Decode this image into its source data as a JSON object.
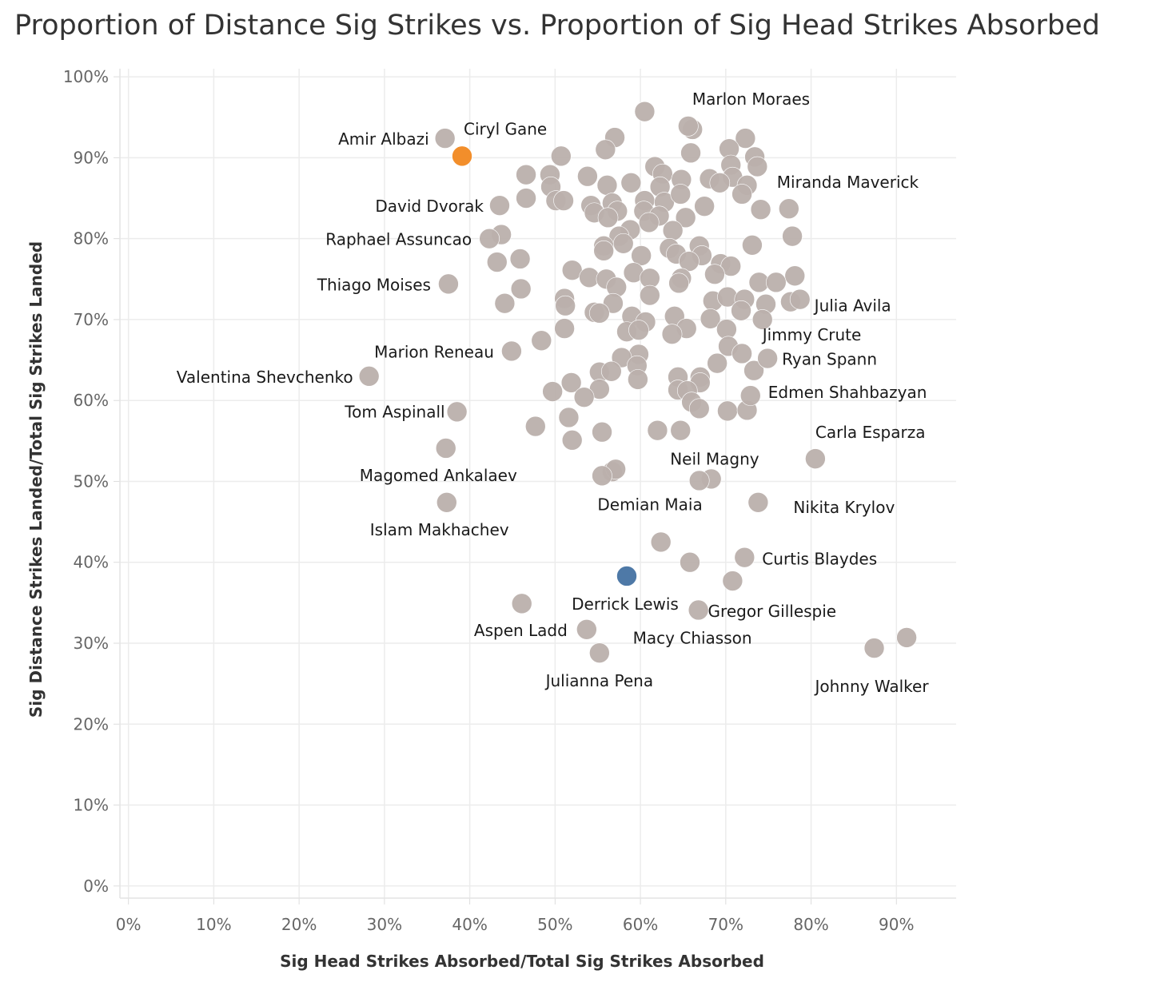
{
  "chart_data": {
    "type": "scatter",
    "title": "Proportion of Distance Sig Strikes vs. Proportion of Sig Head Strikes Absorbed",
    "xlabel": "Sig Head Strikes Absorbed/Total Sig Strikes Absorbed",
    "ylabel": "Sig Distance Strikes Landed/Total Sig Strikes Landed",
    "xlim": [
      -0.01,
      0.97
    ],
    "ylim": [
      -0.015,
      1.01
    ],
    "x_ticks": [
      0,
      0.1,
      0.2,
      0.3,
      0.4,
      0.5,
      0.6,
      0.7,
      0.8,
      0.9
    ],
    "x_tick_labels": [
      "0%",
      "10%",
      "20%",
      "30%",
      "40%",
      "50%",
      "60%",
      "70%",
      "80%",
      "90%"
    ],
    "y_ticks": [
      0,
      0.1,
      0.2,
      0.3,
      0.4,
      0.5,
      0.6,
      0.7,
      0.8,
      0.9,
      1.0
    ],
    "y_tick_labels": [
      "0%",
      "10%",
      "20%",
      "30%",
      "40%",
      "50%",
      "60%",
      "70%",
      "80%",
      "90%",
      "100%"
    ],
    "grid": true,
    "colors": {
      "default": "#bab0ac",
      "highlight_orange": "#f28e2b",
      "highlight_blue": "#4e79a7",
      "grid": "#ececec",
      "label": "#1a1a1a"
    },
    "labeled_points": [
      {
        "name": "Marlon Moraes",
        "x": 0.656,
        "y": 0.939
      },
      {
        "name": "Amir Albazi",
        "x": 0.371,
        "y": 0.924
      },
      {
        "name": "Ciryl Gane",
        "x": 0.391,
        "y": 0.902,
        "color": "#f28e2b"
      },
      {
        "name": "Miranda Maverick",
        "x": 0.774,
        "y": 0.837
      },
      {
        "name": "David Dvorak",
        "x": 0.435,
        "y": 0.841
      },
      {
        "name": "Raphael Assuncao",
        "x": 0.423,
        "y": 0.8
      },
      {
        "name": "Thiago Moises",
        "x": 0.375,
        "y": 0.744
      },
      {
        "name": "Julia Avila",
        "x": 0.787,
        "y": 0.725
      },
      {
        "name": "Jimmy Crute",
        "x": 0.743,
        "y": 0.7
      },
      {
        "name": "Marion Reneau",
        "x": 0.449,
        "y": 0.661
      },
      {
        "name": "Ryan Spann",
        "x": 0.749,
        "y": 0.652
      },
      {
        "name": "Valentina Shevchenko",
        "x": 0.282,
        "y": 0.63
      },
      {
        "name": "Edmen Shahbazyan",
        "x": 0.729,
        "y": 0.606
      },
      {
        "name": "Tom Aspinall",
        "x": 0.385,
        "y": 0.586
      },
      {
        "name": "Carla Esparza",
        "x": 0.805,
        "y": 0.528
      },
      {
        "name": "Neil Magny",
        "x": 0.683,
        "y": 0.503
      },
      {
        "name": "Magomed Ankalaev",
        "x": 0.372,
        "y": 0.541
      },
      {
        "name": "Demian Maia",
        "x": 0.669,
        "y": 0.501
      },
      {
        "name": "Nikita Krylov",
        "x": 0.738,
        "y": 0.474
      },
      {
        "name": "Islam Makhachev",
        "x": 0.373,
        "y": 0.474
      },
      {
        "name": "Curtis Blaydes",
        "x": 0.722,
        "y": 0.406
      },
      {
        "name": "Derrick Lewis",
        "x": 0.584,
        "y": 0.383,
        "color": "#4e79a7"
      },
      {
        "name": "Gregor Gillespie",
        "x": 0.912,
        "y": 0.307
      },
      {
        "name": "Aspen Ladd",
        "x": 0.537,
        "y": 0.317
      },
      {
        "name": "Macy Chiasson",
        "x": 0.668,
        "y": 0.341
      },
      {
        "name": "Julianna Pena",
        "x": 0.552,
        "y": 0.288
      },
      {
        "name": "Johnny Walker",
        "x": 0.874,
        "y": 0.294
      }
    ],
    "other_points": [
      [
        0.605,
        0.957
      ],
      [
        0.661,
        0.935
      ],
      [
        0.57,
        0.925
      ],
      [
        0.723,
        0.924
      ],
      [
        0.559,
        0.91
      ],
      [
        0.704,
        0.911
      ],
      [
        0.659,
        0.906
      ],
      [
        0.507,
        0.902
      ],
      [
        0.734,
        0.901
      ],
      [
        0.706,
        0.891
      ],
      [
        0.737,
        0.889
      ],
      [
        0.617,
        0.889
      ],
      [
        0.626,
        0.88
      ],
      [
        0.466,
        0.879
      ],
      [
        0.494,
        0.879
      ],
      [
        0.538,
        0.877
      ],
      [
        0.648,
        0.873
      ],
      [
        0.681,
        0.874
      ],
      [
        0.708,
        0.876
      ],
      [
        0.693,
        0.869
      ],
      [
        0.561,
        0.866
      ],
      [
        0.589,
        0.869
      ],
      [
        0.623,
        0.864
      ],
      [
        0.495,
        0.864
      ],
      [
        0.725,
        0.866
      ],
      [
        0.466,
        0.85
      ],
      [
        0.501,
        0.847
      ],
      [
        0.51,
        0.847
      ],
      [
        0.542,
        0.841
      ],
      [
        0.567,
        0.844
      ],
      [
        0.605,
        0.847
      ],
      [
        0.628,
        0.845
      ],
      [
        0.647,
        0.855
      ],
      [
        0.719,
        0.855
      ],
      [
        0.546,
        0.832
      ],
      [
        0.573,
        0.834
      ],
      [
        0.604,
        0.834
      ],
      [
        0.622,
        0.828
      ],
      [
        0.653,
        0.826
      ],
      [
        0.675,
        0.84
      ],
      [
        0.741,
        0.836
      ],
      [
        0.562,
        0.826
      ],
      [
        0.588,
        0.811
      ],
      [
        0.61,
        0.82
      ],
      [
        0.638,
        0.81
      ],
      [
        0.575,
        0.803
      ],
      [
        0.437,
        0.805
      ],
      [
        0.778,
        0.803
      ],
      [
        0.557,
        0.791
      ],
      [
        0.58,
        0.794
      ],
      [
        0.601,
        0.779
      ],
      [
        0.634,
        0.788
      ],
      [
        0.642,
        0.781
      ],
      [
        0.669,
        0.791
      ],
      [
        0.731,
        0.792
      ],
      [
        0.557,
        0.785
      ],
      [
        0.672,
        0.779
      ],
      [
        0.657,
        0.772
      ],
      [
        0.432,
        0.771
      ],
      [
        0.459,
        0.775
      ],
      [
        0.694,
        0.769
      ],
      [
        0.706,
        0.766
      ],
      [
        0.52,
        0.761
      ],
      [
        0.592,
        0.758
      ],
      [
        0.648,
        0.751
      ],
      [
        0.687,
        0.756
      ],
      [
        0.781,
        0.754
      ],
      [
        0.54,
        0.752
      ],
      [
        0.56,
        0.75
      ],
      [
        0.611,
        0.751
      ],
      [
        0.645,
        0.745
      ],
      [
        0.739,
        0.746
      ],
      [
        0.759,
        0.746
      ],
      [
        0.46,
        0.738
      ],
      [
        0.572,
        0.74
      ],
      [
        0.611,
        0.73
      ],
      [
        0.511,
        0.726
      ],
      [
        0.441,
        0.72
      ],
      [
        0.512,
        0.717
      ],
      [
        0.568,
        0.72
      ],
      [
        0.685,
        0.723
      ],
      [
        0.702,
        0.728
      ],
      [
        0.722,
        0.725
      ],
      [
        0.747,
        0.719
      ],
      [
        0.776,
        0.722
      ],
      [
        0.718,
        0.711
      ],
      [
        0.546,
        0.709
      ],
      [
        0.552,
        0.708
      ],
      [
        0.59,
        0.704
      ],
      [
        0.64,
        0.704
      ],
      [
        0.682,
        0.701
      ],
      [
        0.606,
        0.697
      ],
      [
        0.511,
        0.689
      ],
      [
        0.584,
        0.685
      ],
      [
        0.598,
        0.687
      ],
      [
        0.654,
        0.689
      ],
      [
        0.701,
        0.688
      ],
      [
        0.637,
        0.682
      ],
      [
        0.484,
        0.674
      ],
      [
        0.703,
        0.667
      ],
      [
        0.598,
        0.657
      ],
      [
        0.578,
        0.653
      ],
      [
        0.719,
        0.658
      ],
      [
        0.69,
        0.646
      ],
      [
        0.596,
        0.643
      ],
      [
        0.552,
        0.635
      ],
      [
        0.566,
        0.636
      ],
      [
        0.733,
        0.637
      ],
      [
        0.644,
        0.629
      ],
      [
        0.67,
        0.629
      ],
      [
        0.519,
        0.622
      ],
      [
        0.597,
        0.626
      ],
      [
        0.67,
        0.622
      ],
      [
        0.552,
        0.614
      ],
      [
        0.644,
        0.613
      ],
      [
        0.655,
        0.612
      ],
      [
        0.497,
        0.611
      ],
      [
        0.534,
        0.604
      ],
      [
        0.66,
        0.598
      ],
      [
        0.669,
        0.59
      ],
      [
        0.702,
        0.587
      ],
      [
        0.725,
        0.588
      ],
      [
        0.516,
        0.579
      ],
      [
        0.477,
        0.568
      ],
      [
        0.555,
        0.561
      ],
      [
        0.62,
        0.563
      ],
      [
        0.647,
        0.563
      ],
      [
        0.52,
        0.551
      ],
      [
        0.567,
        0.512
      ],
      [
        0.571,
        0.515
      ],
      [
        0.555,
        0.507
      ],
      [
        0.624,
        0.425
      ],
      [
        0.658,
        0.4
      ],
      [
        0.708,
        0.377
      ],
      [
        0.461,
        0.349
      ]
    ]
  }
}
